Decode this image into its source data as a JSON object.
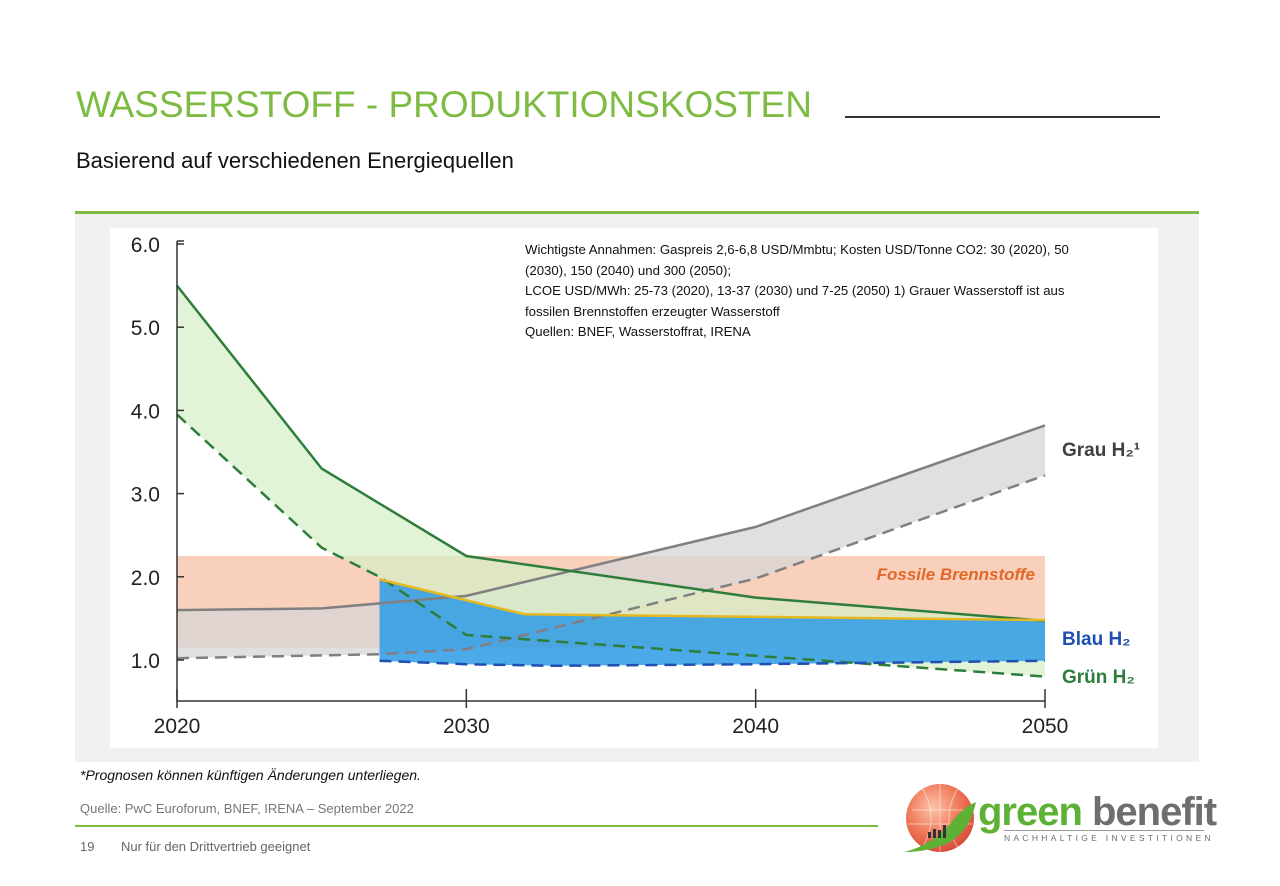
{
  "header": {
    "title": "WASSERSTOFF - PRODUKTIONSKOSTEN",
    "subtitle": "Basierend auf verschiedenen Energiequellen"
  },
  "chart_data": {
    "type": "area",
    "title": "",
    "xlabel": "",
    "ylabel": "",
    "xlim": [
      2020,
      2050
    ],
    "ylim": [
      0.5,
      6.0
    ],
    "x_ticks": [
      "2020",
      "2030",
      "2040",
      "2050"
    ],
    "y_ticks": [
      "6.0",
      "5.0",
      "4.0",
      "3.0",
      "2.0",
      "1.0"
    ],
    "grid": false,
    "legend": "direct labels at right",
    "annotation": [
      "Wichtigste Annahmen: Gaspreis 2,6-6,8 USD/Mmbtu; Kosten USD/Tonne CO2: 30 (2020), 50",
      "(2030), 150 (2040) und 300 (2050);",
      "LCOE USD/MWh: 25-73 (2020), 13-37 (2030) und 7-25 (2050) 1) Grauer Wasserstoff ist aus",
      "fossilen Brennstoffen erzeugter Wasserstoff",
      "Quellen: BNEF, Wasserstoffrat, IRENA"
    ],
    "bands": [
      {
        "name": "Fossile Brennstoffe",
        "label_color": "#e0692a",
        "fill": "#f7c4ab",
        "upper": {
          "x": [
            2020,
            2050
          ],
          "y": [
            2.25,
            2.25
          ]
        },
        "lower": {
          "x": [
            2020,
            2050
          ],
          "y": [
            1.15,
            1.15
          ]
        }
      },
      {
        "name": "Grau H₂¹",
        "label_color": "#404040",
        "fill": "#d6d6d6",
        "line": "#808080",
        "upper": {
          "x": [
            2020,
            2025,
            2030,
            2040,
            2050
          ],
          "y": [
            1.6,
            1.62,
            1.77,
            2.6,
            3.82
          ]
        },
        "lower": {
          "x": [
            2020,
            2027,
            2030,
            2040,
            2050
          ],
          "y": [
            1.02,
            1.07,
            1.13,
            1.98,
            3.22
          ]
        }
      },
      {
        "name": "Grün H₂",
        "label_color": "#2e7d3a",
        "fill": "#d5efc8",
        "line": "#2e7d3a",
        "upper": {
          "x": [
            2020,
            2025,
            2030,
            2040,
            2050
          ],
          "y": [
            5.5,
            3.3,
            2.25,
            1.75,
            1.47
          ]
        },
        "lower": {
          "x": [
            2020,
            2025,
            2027,
            2030,
            2040,
            2050
          ],
          "y": [
            3.95,
            2.35,
            2.0,
            1.3,
            1.05,
            0.8
          ]
        }
      },
      {
        "name": "Blau H₂",
        "label_color": "#1f4fb0",
        "fill": "#2d9be6",
        "line": "#e6b820",
        "lower_line": "#1f4fb0",
        "upper": {
          "x": [
            2027,
            2032,
            2050
          ],
          "y": [
            1.97,
            1.55,
            1.48
          ]
        },
        "lower": {
          "x": [
            2027,
            2030,
            2033,
            2040,
            2050
          ],
          "y": [
            0.99,
            0.95,
            0.93,
            0.95,
            0.99
          ]
        }
      }
    ]
  },
  "footer": {
    "disclaimer": "*Prognosen können künftigen Änderungen unterliegen.",
    "source": "Quelle: PwC Euroforum, BNEF, IRENA – September  2022",
    "page_number": "19",
    "note": "Nur für den Drittvertrieb geeignet"
  },
  "logo": {
    "word1": "green",
    "word2": "benefit",
    "tagline": "NACHHALTIGE INVESTITIONEN"
  },
  "colors": {
    "brand_green": "#7dbb42"
  }
}
